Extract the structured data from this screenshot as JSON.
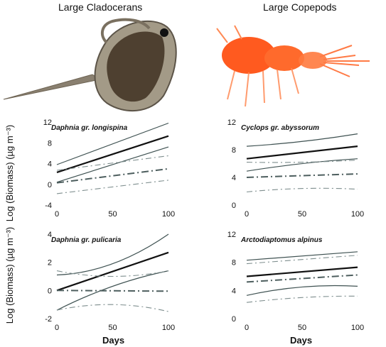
{
  "headers": {
    "left": "Large Cladocerans",
    "right": "Large Copepods"
  },
  "y_axis_label": "Log (Biomass) (µg m⁻³)",
  "x_axis_label": "Days",
  "chart_data": [
    {
      "type": "line",
      "title": "Daphnia gr. longispina",
      "x_ticks": [
        0,
        50,
        100
      ],
      "y_ticks": [
        -4,
        0,
        4,
        8,
        12
      ],
      "xlim": [
        0,
        100
      ],
      "ylim": [
        -4,
        12
      ],
      "series": [
        {
          "style": "solid-thick",
          "x": [
            0,
            100
          ],
          "y": [
            2.3,
            9.3
          ]
        },
        {
          "style": "solid-thin",
          "x": [
            0,
            100
          ],
          "y": [
            3.8,
            11.8
          ]
        },
        {
          "style": "solid-thin",
          "x": [
            0,
            100
          ],
          "y": [
            0.4,
            7.2
          ]
        },
        {
          "style": "dashdot-thick",
          "x": [
            0,
            100
          ],
          "y": [
            0.3,
            3.0
          ]
        },
        {
          "style": "dashdot-thin",
          "x": [
            0,
            100
          ],
          "y": [
            2.7,
            5.5
          ]
        },
        {
          "style": "dashdot-thin",
          "x": [
            0,
            100
          ],
          "y": [
            -1.8,
            0.8
          ]
        }
      ]
    },
    {
      "type": "line",
      "title": "Cyclops gr. abyssorum",
      "x_ticks": [
        0,
        50,
        100
      ],
      "y_ticks": [
        0,
        4,
        8,
        12
      ],
      "xlim": [
        0,
        100
      ],
      "ylim": [
        0,
        12
      ],
      "series": [
        {
          "style": "solid-thick",
          "x": [
            0,
            100
          ],
          "y": [
            6.7,
            8.5
          ]
        },
        {
          "style": "solid-thin",
          "x": [
            0,
            50,
            100
          ],
          "y": [
            8.5,
            9.2,
            10.3
          ]
        },
        {
          "style": "solid-thin",
          "x": [
            0,
            50,
            100
          ],
          "y": [
            4.9,
            6.0,
            6.7
          ]
        },
        {
          "style": "dashdot-thick",
          "x": [
            0,
            100
          ],
          "y": [
            4.0,
            4.5
          ]
        },
        {
          "style": "dashdot-thin",
          "x": [
            0,
            50,
            100
          ],
          "y": [
            6.2,
            6.2,
            6.5
          ]
        },
        {
          "style": "dashdot-thin",
          "x": [
            0,
            50,
            100
          ],
          "y": [
            1.9,
            2.4,
            2.3
          ]
        }
      ]
    },
    {
      "type": "line",
      "title": "Daphnia gr. pulicaria",
      "x_ticks": [
        0,
        50,
        100
      ],
      "y_ticks": [
        -2,
        0,
        2,
        4
      ],
      "xlim": [
        0,
        100
      ],
      "ylim": [
        -2,
        4
      ],
      "series": [
        {
          "style": "solid-thick",
          "x": [
            0,
            100
          ],
          "y": [
            0.0,
            2.7
          ]
        },
        {
          "style": "solid-thin",
          "x": [
            0,
            50,
            100
          ],
          "y": [
            1.1,
            1.9,
            4.0
          ]
        },
        {
          "style": "solid-thin",
          "x": [
            0,
            50,
            100
          ],
          "y": [
            -1.4,
            0.3,
            1.4
          ]
        },
        {
          "style": "dashdot-thick",
          "x": [
            0,
            100
          ],
          "y": [
            0.0,
            -0.05
          ]
        },
        {
          "style": "dashdot-thin",
          "x": [
            0,
            50,
            100
          ],
          "y": [
            1.4,
            1.0,
            1.4
          ]
        },
        {
          "style": "dashdot-thin",
          "x": [
            0,
            50,
            100
          ],
          "y": [
            -1.4,
            -1.0,
            -1.5
          ]
        }
      ]
    },
    {
      "type": "line",
      "title": "Arctodiaptomus alpinus",
      "x_ticks": [
        0,
        50,
        100
      ],
      "y_ticks": [
        0,
        4,
        8,
        12
      ],
      "xlim": [
        0,
        100
      ],
      "ylim": [
        0,
        12
      ],
      "series": [
        {
          "style": "solid-thick",
          "x": [
            0,
            100
          ],
          "y": [
            6.0,
            7.3
          ]
        },
        {
          "style": "solid-thin",
          "x": [
            0,
            100
          ],
          "y": [
            8.3,
            9.5
          ]
        },
        {
          "style": "solid-thin",
          "x": [
            0,
            50,
            100
          ],
          "y": [
            3.3,
            4.5,
            4.6
          ]
        },
        {
          "style": "dashdot-thick",
          "x": [
            0,
            100
          ],
          "y": [
            5.2,
            6.2
          ]
        },
        {
          "style": "dashdot-thin",
          "x": [
            0,
            100
          ],
          "y": [
            7.8,
            9.0
          ]
        },
        {
          "style": "dashdot-thin",
          "x": [
            0,
            50,
            100
          ],
          "y": [
            2.3,
            3.0,
            3.2
          ]
        }
      ]
    }
  ]
}
